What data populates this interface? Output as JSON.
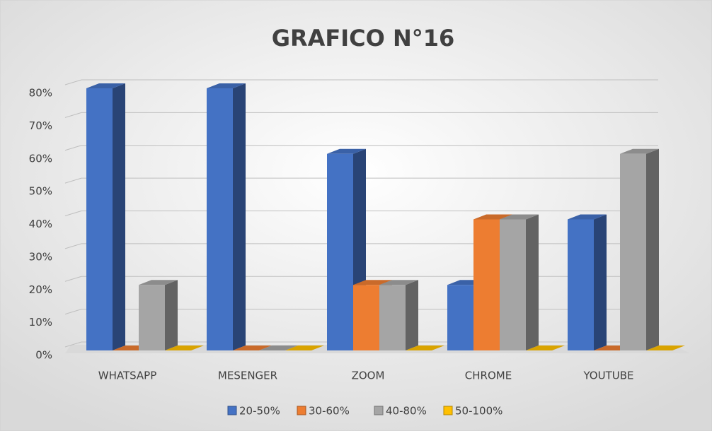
{
  "chart_data": {
    "type": "bar3d",
    "title": "GRAFICO N°16",
    "categories": [
      "WHATSAPP",
      "MESENGER",
      "ZOOM",
      "CHROME",
      "YOUTUBE"
    ],
    "series": [
      {
        "name": "20-50%",
        "color": "#4472c4",
        "values": [
          80,
          80,
          60,
          20,
          40
        ]
      },
      {
        "name": "30-60%",
        "color": "#ed7d31",
        "values": [
          0,
          0,
          20,
          40,
          0
        ]
      },
      {
        "name": "40-80%",
        "color": "#a5a5a5",
        "values": [
          20,
          0,
          20,
          40,
          60
        ]
      },
      {
        "name": "50-100%",
        "color": "#ffc000",
        "values": [
          0,
          0,
          0,
          0,
          0
        ]
      }
    ],
    "ylim": [
      0,
      80
    ],
    "yticks": [
      {
        "value": 0,
        "label": "0%"
      },
      {
        "value": 10,
        "label": "10%"
      },
      {
        "value": 20,
        "label": "20%"
      },
      {
        "value": 30,
        "label": "30%"
      },
      {
        "value": 40,
        "label": "40%"
      },
      {
        "value": 50,
        "label": "50%"
      },
      {
        "value": 60,
        "label": "60%"
      },
      {
        "value": 70,
        "label": "70%"
      },
      {
        "value": 80,
        "label": "80%"
      }
    ],
    "grid": true,
    "legend": "bottom"
  }
}
